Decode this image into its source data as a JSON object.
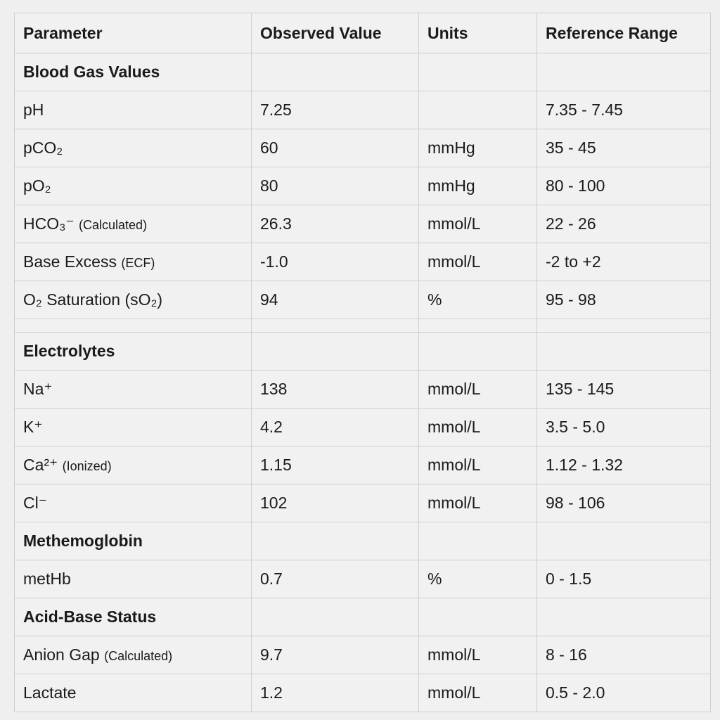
{
  "table": {
    "header": [
      "Parameter",
      "Observed Value",
      "Units",
      "Reference Range"
    ],
    "sections": [
      {
        "title": "Blood Gas Values",
        "rows": [
          {
            "name": "pH",
            "value": "7.25",
            "unit": null,
            "range": "7.35 - 7.45"
          },
          {
            "name": "pCO₂",
            "value": "60",
            "unit": "mmHg",
            "range": "35 - 45"
          },
          {
            "name": "pO₂",
            "value": "80",
            "unit": "mmHg",
            "range": "80 - 100"
          },
          {
            "name": "HCO₃⁻",
            "note": "(Calculated)",
            "value": "26.3",
            "unit": "mmol/L",
            "range": "22 - 26"
          },
          {
            "name": "Base Excess",
            "note": "(ECF)",
            "value": "-1.0",
            "unit": "mmol/L",
            "range": "-2 to +2"
          },
          {
            "name": "O₂ Saturation (sO₂)",
            "value": "94",
            "unit": "%",
            "range": "95 - 98"
          }
        ]
      },
      {
        "title": "Electrolytes",
        "rows": [
          {
            "name": "Na⁺",
            "value": "138",
            "unit": "mmol/L",
            "range": "135 - 145"
          },
          {
            "name": "K⁺",
            "value": "4.2",
            "unit": "mmol/L",
            "range": "3.5 - 5.0"
          },
          {
            "name": "Ca²⁺",
            "note": "(Ionized)",
            "value": "1.15",
            "unit": "mmol/L",
            "range": "1.12 - 1.32"
          },
          {
            "name": "Cl⁻",
            "value": "102",
            "unit": "mmol/L",
            "range": "98 - 106"
          }
        ]
      },
      {
        "title": "Methemoglobin",
        "rows": [
          {
            "name": "metHb",
            "value": "0.7",
            "unit": "%",
            "range": "0 - 1.5"
          }
        ]
      },
      {
        "title": "Acid-Base Status",
        "rows": [
          {
            "name": "Anion Gap",
            "note": "(Calculated)",
            "value": "9.7",
            "unit": "mmol/L",
            "range": "8 - 16"
          },
          {
            "name": "Lactate",
            "value": "1.2",
            "unit": "mmol/L",
            "range": "0.5 - 2.0"
          }
        ]
      }
    ]
  }
}
